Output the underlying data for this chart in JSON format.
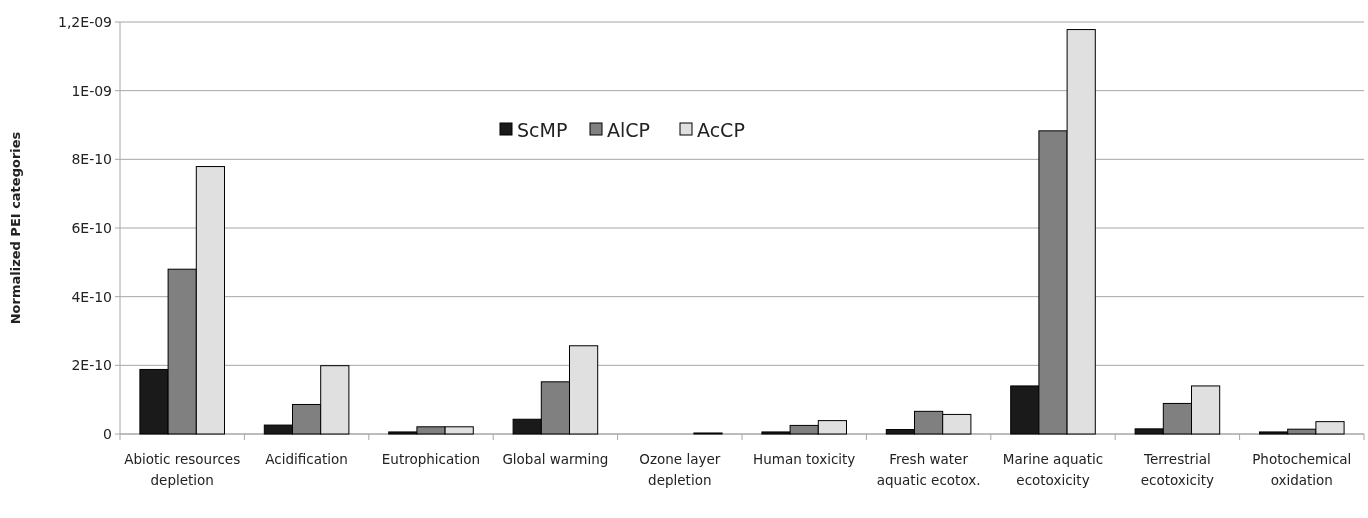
{
  "chart_data": {
    "type": "bar",
    "ylabel": "Normalized PEI categories",
    "categories": [
      "Abiotic resources depletion",
      "Acidification",
      "Eutrophication",
      "Global warming",
      "Ozone layer depletion",
      "Human toxicity",
      "Fresh water aquatic ecotox.",
      "Marine aquatic ecotoxicity",
      "Terrestrial ecotoxicity",
      "Photochemical oxidation"
    ],
    "series": [
      {
        "name": "ScMP",
        "color": "#1a1a1a",
        "values": [
          1.88e-10,
          2.6e-11,
          6e-12,
          4.3e-11,
          0,
          6e-12,
          1.3e-11,
          1.4e-10,
          1.5e-11,
          6e-12
        ]
      },
      {
        "name": "AlCP",
        "color": "#808080",
        "values": [
          4.8e-10,
          8.6e-11,
          2.1e-11,
          1.52e-10,
          0,
          2.5e-11,
          6.6e-11,
          8.83e-10,
          8.9e-11,
          1.4e-11
        ]
      },
      {
        "name": "AcCP",
        "color": "#e0e0e0",
        "values": [
          7.79e-10,
          1.99e-10,
          2.1e-11,
          2.57e-10,
          3e-12,
          3.9e-11,
          5.7e-11,
          1.178e-09,
          1.4e-10,
          3.6e-11
        ]
      }
    ],
    "ylim": [
      0,
      1.2e-09
    ],
    "yticks": [
      {
        "value": 0,
        "label": "0"
      },
      {
        "value": 2e-10,
        "label": "2E-10"
      },
      {
        "value": 4e-10,
        "label": "4E-10"
      },
      {
        "value": 6e-10,
        "label": "6E-10"
      },
      {
        "value": 8e-10,
        "label": "8E-10"
      },
      {
        "value": 1e-09,
        "label": "1E-09"
      },
      {
        "value": 1.2e-09,
        "label": "1,2E-09"
      }
    ],
    "grid": "y",
    "legend": "top"
  }
}
